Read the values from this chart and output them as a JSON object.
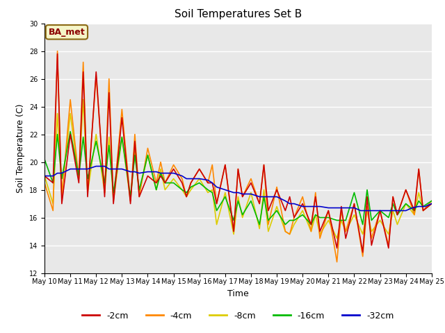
{
  "title": "Soil Temperatures Set B",
  "xlabel": "Time",
  "ylabel": "Soil Temperature (C)",
  "ylim": [
    12,
    30
  ],
  "yticks": [
    12,
    14,
    16,
    18,
    20,
    22,
    24,
    26,
    28,
    30
  ],
  "annotation": "BA_met",
  "series": {
    "-2cm": {
      "color": "#cc0000",
      "x": [
        0,
        0.33,
        0.5,
        0.67,
        1.0,
        1.33,
        1.5,
        1.67,
        2.0,
        2.33,
        2.5,
        2.67,
        3.0,
        3.33,
        3.5,
        3.67,
        4.0,
        4.33,
        4.5,
        4.67,
        5.0,
        5.33,
        5.5,
        5.67,
        6.0,
        6.33,
        6.5,
        6.67,
        7.0,
        7.33,
        7.5,
        7.67,
        8.0,
        8.33,
        8.5,
        8.67,
        9.0,
        9.33,
        9.5,
        9.67,
        10.0,
        10.33,
        10.5,
        10.67,
        11.0,
        11.33,
        11.5,
        11.67,
        12.0,
        12.33,
        12.5,
        12.67,
        13.0,
        13.33,
        13.5,
        13.67,
        14.0,
        14.33,
        14.5,
        14.67,
        15.0
      ],
      "y": [
        19.0,
        18.5,
        27.8,
        17.0,
        22.0,
        18.5,
        26.5,
        17.5,
        26.5,
        17.5,
        25.0,
        17.0,
        23.2,
        17.0,
        21.5,
        17.5,
        19.0,
        18.5,
        19.0,
        18.5,
        19.5,
        18.5,
        17.5,
        18.5,
        19.5,
        18.5,
        18.5,
        17.0,
        19.8,
        15.0,
        19.5,
        17.5,
        18.5,
        17.0,
        19.8,
        16.5,
        18.0,
        16.5,
        17.5,
        16.0,
        17.0,
        15.5,
        17.5,
        15.0,
        16.5,
        13.8,
        16.8,
        14.5,
        17.0,
        13.5,
        17.5,
        14.0,
        16.5,
        13.8,
        17.5,
        16.2,
        18.0,
        16.5,
        19.5,
        16.5,
        17.0
      ]
    },
    "-4cm": {
      "color": "#ff8800",
      "x": [
        0,
        0.33,
        0.5,
        0.67,
        1.0,
        1.33,
        1.5,
        1.67,
        2.0,
        2.33,
        2.5,
        2.67,
        3.0,
        3.33,
        3.5,
        3.67,
        4.0,
        4.33,
        4.5,
        4.67,
        5.0,
        5.33,
        5.5,
        5.67,
        6.0,
        6.33,
        6.5,
        6.67,
        7.0,
        7.33,
        7.5,
        7.67,
        8.0,
        8.33,
        8.5,
        8.67,
        9.0,
        9.33,
        9.5,
        9.67,
        10.0,
        10.33,
        10.5,
        10.67,
        11.0,
        11.33,
        11.5,
        11.67,
        12.0,
        12.33,
        12.5,
        12.67,
        13.0,
        13.33,
        13.5,
        13.67,
        14.0,
        14.33,
        14.5,
        14.67,
        15.0
      ],
      "y": [
        18.5,
        16.5,
        28.0,
        17.5,
        24.5,
        18.8,
        27.2,
        17.8,
        26.2,
        17.8,
        26.0,
        17.2,
        23.8,
        17.2,
        22.0,
        17.5,
        21.0,
        18.5,
        20.0,
        18.5,
        19.8,
        18.8,
        17.5,
        18.5,
        19.5,
        18.5,
        19.8,
        17.0,
        19.8,
        15.0,
        19.5,
        17.5,
        18.8,
        17.0,
        19.8,
        15.5,
        18.2,
        15.0,
        14.8,
        16.0,
        17.5,
        15.0,
        17.8,
        14.5,
        16.5,
        12.8,
        16.5,
        15.0,
        17.0,
        13.2,
        16.8,
        14.5,
        16.5,
        14.0,
        17.5,
        16.2,
        18.0,
        16.2,
        19.5,
        16.5,
        17.2
      ]
    },
    "-8cm": {
      "color": "#ddcc00",
      "x": [
        0,
        0.33,
        0.5,
        0.67,
        1.0,
        1.33,
        1.5,
        1.67,
        2.0,
        2.33,
        2.5,
        2.67,
        3.0,
        3.33,
        3.5,
        3.67,
        4.0,
        4.33,
        4.5,
        4.67,
        5.0,
        5.33,
        5.5,
        5.67,
        6.0,
        6.33,
        6.5,
        6.67,
        7.0,
        7.33,
        7.5,
        7.67,
        8.0,
        8.33,
        8.5,
        8.67,
        9.0,
        9.33,
        9.5,
        9.67,
        10.0,
        10.33,
        10.5,
        10.67,
        11.0,
        11.33,
        11.5,
        11.67,
        12.0,
        12.33,
        12.5,
        12.67,
        13.0,
        13.33,
        13.5,
        13.67,
        14.0,
        14.33,
        14.5,
        14.67,
        15.0
      ],
      "y": [
        19.0,
        17.0,
        23.5,
        17.8,
        23.5,
        18.8,
        24.5,
        17.8,
        22.0,
        17.8,
        21.8,
        17.2,
        21.8,
        17.2,
        20.8,
        17.8,
        20.5,
        18.0,
        19.5,
        18.0,
        18.8,
        18.0,
        17.5,
        18.0,
        18.8,
        17.8,
        18.0,
        15.5,
        17.8,
        14.8,
        17.5,
        16.0,
        17.8,
        15.2,
        18.0,
        15.0,
        16.8,
        15.0,
        14.8,
        15.5,
        16.5,
        15.0,
        16.2,
        14.8,
        15.8,
        14.5,
        15.8,
        15.0,
        16.2,
        14.8,
        16.5,
        15.0,
        15.8,
        14.8,
        16.5,
        15.5,
        17.0,
        16.2,
        17.8,
        16.5,
        17.0
      ]
    },
    "-16cm": {
      "color": "#00bb00",
      "x": [
        0,
        0.33,
        0.5,
        0.67,
        1.0,
        1.33,
        1.5,
        1.67,
        2.0,
        2.33,
        2.5,
        2.67,
        3.0,
        3.33,
        3.5,
        3.67,
        4.0,
        4.33,
        4.5,
        4.67,
        5.0,
        5.33,
        5.5,
        5.67,
        6.0,
        6.33,
        6.5,
        6.67,
        7.0,
        7.33,
        7.5,
        7.67,
        8.0,
        8.33,
        8.5,
        8.67,
        9.0,
        9.33,
        9.5,
        9.67,
        10.0,
        10.33,
        10.5,
        10.67,
        11.0,
        11.33,
        11.5,
        11.67,
        12.0,
        12.33,
        12.5,
        12.67,
        13.0,
        13.33,
        13.5,
        13.67,
        14.0,
        14.33,
        14.5,
        14.67,
        15.0
      ],
      "y": [
        20.2,
        18.5,
        22.0,
        18.8,
        22.2,
        19.0,
        21.8,
        18.8,
        21.5,
        18.5,
        21.2,
        17.8,
        21.8,
        17.5,
        20.5,
        18.0,
        20.5,
        18.0,
        19.2,
        18.5,
        18.5,
        18.0,
        17.8,
        18.2,
        18.5,
        18.0,
        17.8,
        16.5,
        17.5,
        15.8,
        17.2,
        16.2,
        17.2,
        15.5,
        17.5,
        15.8,
        16.5,
        15.5,
        15.8,
        15.8,
        16.2,
        15.5,
        16.2,
        16.0,
        16.0,
        15.8,
        15.8,
        15.8,
        17.8,
        15.5,
        18.0,
        15.8,
        16.5,
        16.0,
        17.0,
        16.2,
        17.0,
        16.5,
        17.2,
        16.8,
        17.2
      ]
    },
    "-32cm": {
      "color": "#0000cc",
      "x": [
        0,
        0.33,
        0.5,
        0.67,
        1.0,
        1.33,
        1.5,
        1.67,
        2.0,
        2.33,
        2.5,
        2.67,
        3.0,
        3.33,
        3.5,
        3.67,
        4.0,
        4.33,
        4.5,
        4.67,
        5.0,
        5.33,
        5.5,
        5.67,
        6.0,
        6.33,
        6.5,
        6.67,
        7.0,
        7.33,
        7.5,
        7.67,
        8.0,
        8.33,
        8.5,
        8.67,
        9.0,
        9.33,
        9.5,
        9.67,
        10.0,
        10.33,
        10.5,
        10.67,
        11.0,
        11.33,
        11.5,
        11.67,
        12.0,
        12.25,
        12.5,
        12.75,
        13.0,
        13.25,
        13.5,
        13.75,
        14.0,
        14.25,
        14.5,
        14.75,
        15.0
      ],
      "y": [
        19.0,
        19.0,
        19.2,
        19.2,
        19.5,
        19.5,
        19.5,
        19.5,
        19.7,
        19.7,
        19.5,
        19.5,
        19.5,
        19.3,
        19.3,
        19.2,
        19.3,
        19.3,
        19.2,
        19.2,
        19.2,
        19.0,
        18.8,
        18.8,
        18.8,
        18.7,
        18.5,
        18.2,
        18.0,
        17.8,
        17.8,
        17.7,
        17.7,
        17.5,
        17.5,
        17.5,
        17.5,
        17.2,
        17.0,
        17.0,
        16.8,
        16.8,
        16.8,
        16.8,
        16.7,
        16.7,
        16.7,
        16.7,
        16.7,
        16.5,
        16.5,
        16.5,
        16.5,
        16.5,
        16.5,
        16.5,
        16.5,
        16.7,
        16.8,
        16.8,
        17.0
      ]
    }
  },
  "xtick_positions": [
    0,
    1,
    2,
    3,
    4,
    5,
    6,
    7,
    8,
    9,
    10,
    11,
    12,
    13,
    14,
    15
  ],
  "xtick_labels": [
    "May 10",
    "May 11",
    "May 12",
    "May 13",
    "May 14",
    "May 15",
    "May 16",
    "May 17",
    "May 18",
    "May 19",
    "May 20",
    "May 21",
    "May 22",
    "May 23",
    "May 24",
    "May 25"
  ]
}
